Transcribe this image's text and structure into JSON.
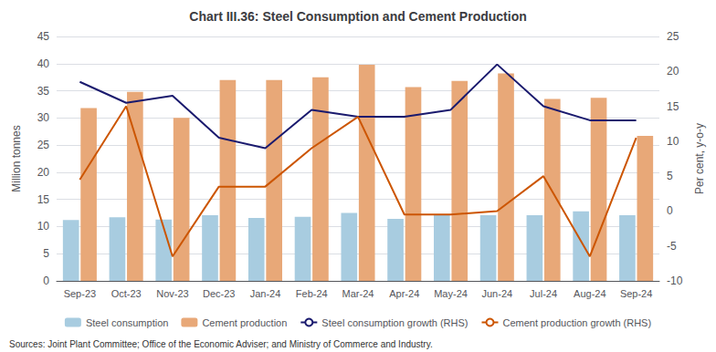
{
  "chart_data": {
    "type": "bar",
    "title": "Chart III.36: Steel Consumption and Cement Production",
    "categories": [
      "Sep-23",
      "Oct-23",
      "Nov-23",
      "Dec-23",
      "Jan-24",
      "Feb-24",
      "Mar-24",
      "Apr-24",
      "May-24",
      "Jun-24",
      "Jul-24",
      "Aug-24",
      "Sep-24"
    ],
    "series": [
      {
        "name": "Steel consumption",
        "type": "bar",
        "color": "#a8cce0",
        "values": [
          11.2,
          11.7,
          11.3,
          12.1,
          11.6,
          11.8,
          12.5,
          11.4,
          12.1,
          12.1,
          12.1,
          12.8,
          12.1
        ]
      },
      {
        "name": "Cement production",
        "type": "bar",
        "color": "#e8a878",
        "values": [
          31.8,
          34.8,
          30.0,
          37.0,
          37.0,
          37.5,
          39.8,
          35.7,
          36.8,
          38.2,
          33.5,
          33.7,
          26.7
        ]
      },
      {
        "name": "Steel consumption growth (RHS)",
        "type": "line",
        "axis": "y2",
        "color": "#1a1a6e",
        "values": [
          18.5,
          15.5,
          16.5,
          10.5,
          9.0,
          14.5,
          13.5,
          13.5,
          14.5,
          21.0,
          15.0,
          13.0,
          13.0
        ]
      },
      {
        "name": "Cement production growth (RHS)",
        "type": "line",
        "axis": "y2",
        "color": "#cc5500",
        "values": [
          4.5,
          15.0,
          -6.5,
          3.5,
          3.5,
          9.0,
          13.5,
          -0.5,
          -0.5,
          0.0,
          5.0,
          -6.5,
          10.5
        ]
      }
    ],
    "ylabel": "Million tonnes",
    "y2label": "Per cent, y-o-y",
    "ylim": [
      0,
      45
    ],
    "yticks": [
      0,
      5,
      10,
      15,
      20,
      25,
      30,
      35,
      40,
      45
    ],
    "y2lim": [
      -10,
      25
    ],
    "y2ticks": [
      -10,
      -5,
      0,
      5,
      10,
      15,
      20,
      25
    ],
    "grid": true,
    "legend": "bottom",
    "annotations": [
      "Sources: Joint Plant Committee; Office of the Economic Adviser; and Ministry of Commerce and Industry."
    ]
  }
}
